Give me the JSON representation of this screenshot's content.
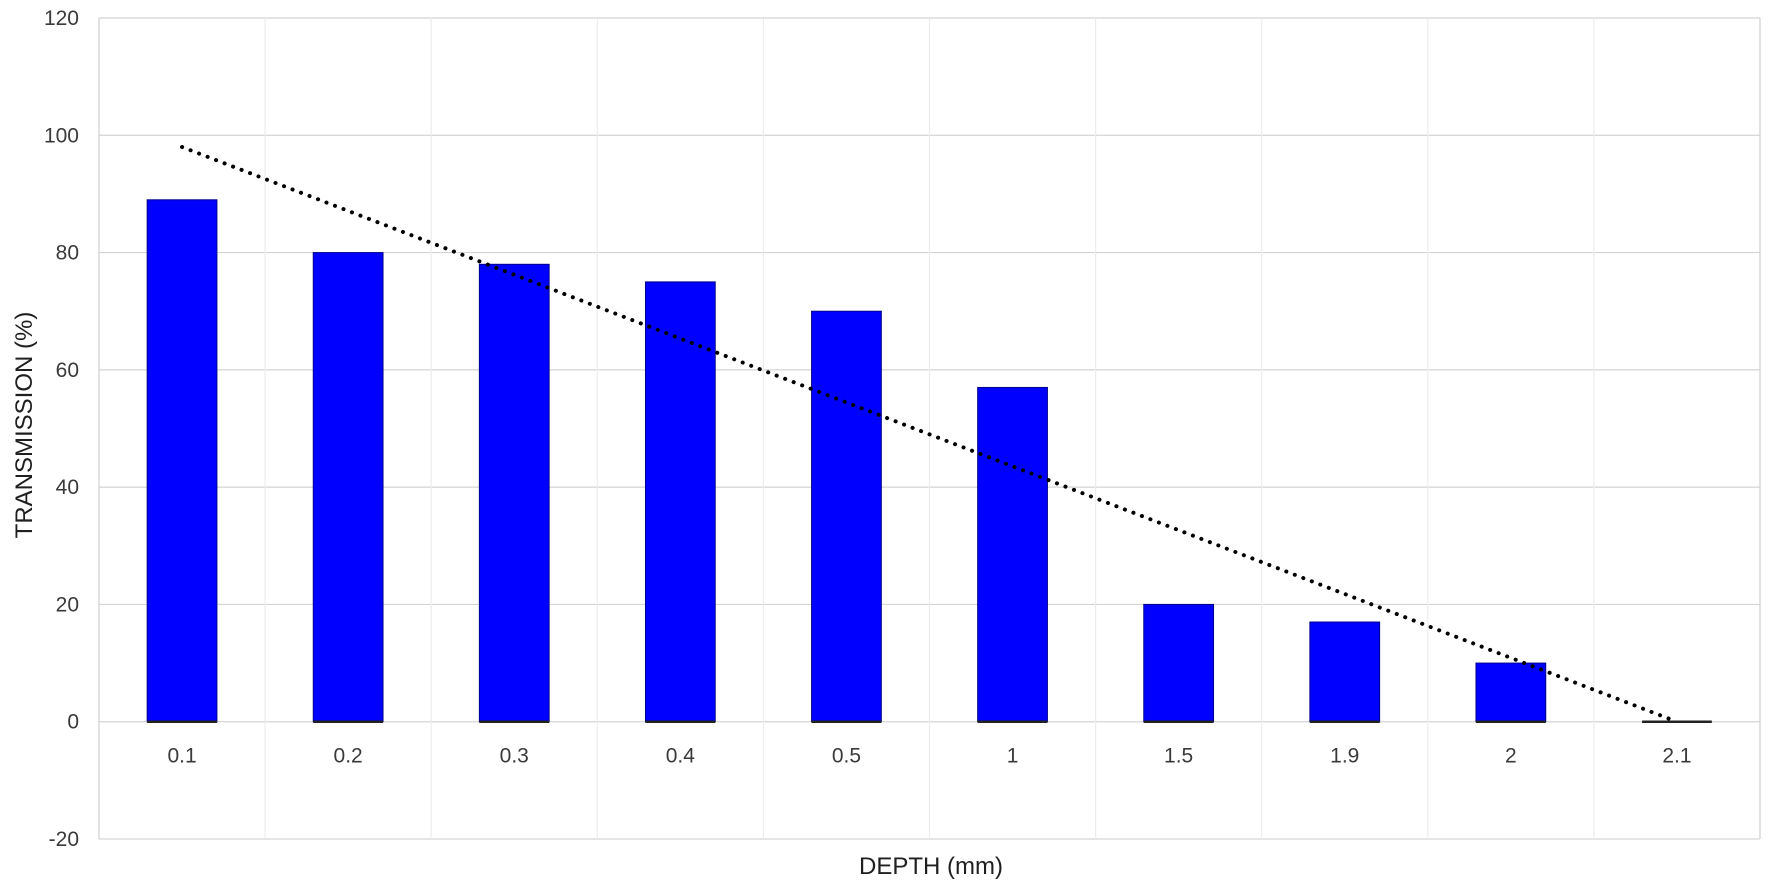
{
  "chart_data": {
    "type": "bar",
    "title": "",
    "xlabel": "DEPTH (mm)",
    "ylabel": "TRANSMISSION (%)",
    "categories": [
      "0.1",
      "0.2",
      "0.3",
      "0.4",
      "0.5",
      "1",
      "1.5",
      "1.9",
      "2",
      "2.1"
    ],
    "values": [
      89,
      80,
      78,
      75,
      70,
      57,
      20,
      17,
      10,
      0
    ],
    "ylim": [
      -20,
      120
    ],
    "yticks": [
      -20,
      0,
      20,
      40,
      60,
      80,
      100,
      120
    ],
    "grid": true,
    "legend": "none",
    "trendline": {
      "style": "dotted",
      "from": {
        "category": "0.1",
        "y": 98
      },
      "to": {
        "category": "2.1",
        "y": 0
      }
    },
    "colors": {
      "bar": "#0000ff",
      "bar_edge": "#00008b",
      "trendline": "#000000",
      "grid": "#d4d4d4"
    }
  }
}
